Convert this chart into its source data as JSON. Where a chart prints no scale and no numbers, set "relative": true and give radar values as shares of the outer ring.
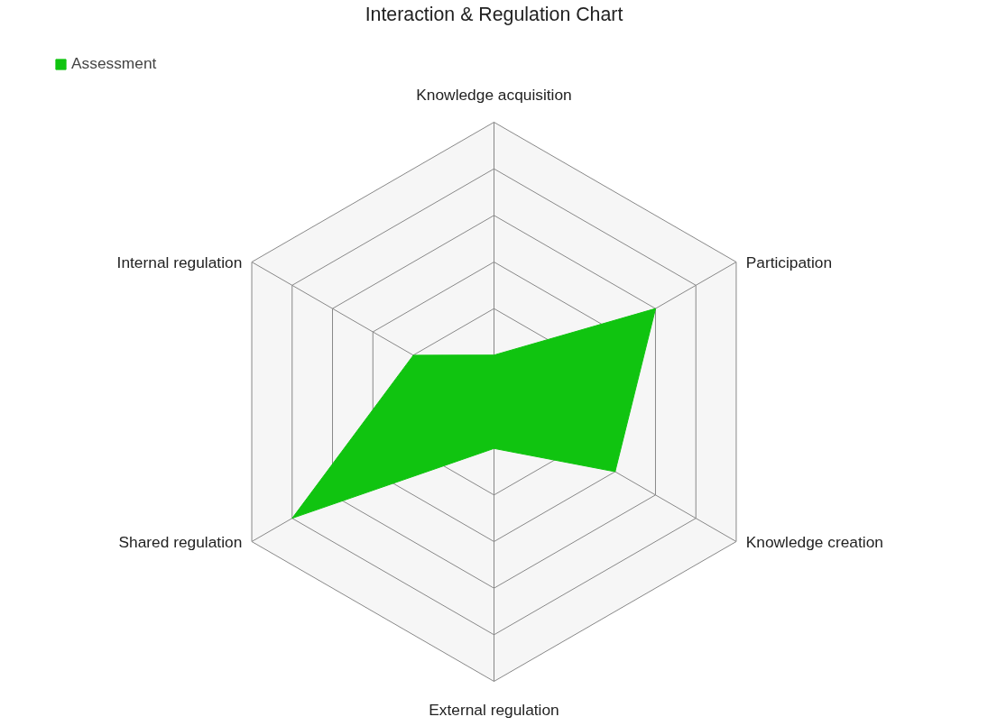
{
  "chart_data": {
    "type": "radar",
    "title": "Interaction & Regulation Chart",
    "relative": true,
    "legend": "top left",
    "categories": [
      "Knowledge acquisition",
      "Participation",
      "Knowledge creation",
      "External regulation",
      "Shared regulation",
      "Internal regulation"
    ],
    "series": [
      {
        "name": "Assessment",
        "color": "#10c410",
        "values": [
          0.167,
          0.667,
          0.5,
          0.167,
          0.833,
          0.333
        ]
      }
    ]
  }
}
